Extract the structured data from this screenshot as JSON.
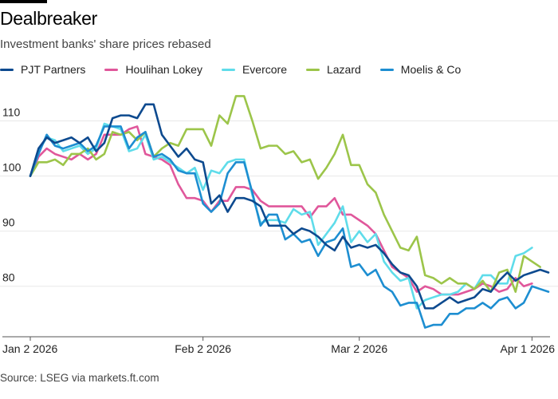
{
  "header": {
    "title": "Dealbreaker",
    "subtitle": "Investment banks' share prices rebased"
  },
  "footer": {
    "source": "Source: LSEG via markets.ft.com"
  },
  "colors": {
    "pjt": "#0d4a8f",
    "houlihan": "#e0579b",
    "evercore": "#5fdcea",
    "lazard": "#9cc54a",
    "moelis": "#1d8ed1",
    "axis": "#555555",
    "grid": "#e8e8e8",
    "text": "#222222"
  },
  "chart_data": {
    "type": "line",
    "title": "Dealbreaker",
    "subtitle": "Investment banks' share prices rebased",
    "xlabel": "",
    "ylabel": "",
    "ylim": [
      72,
      115
    ],
    "yticks": [
      80,
      90,
      100,
      110
    ],
    "grid": true,
    "legend_position": "top",
    "xtick_labels": [
      "Jan 2 2026",
      "Feb 2 2026",
      "Mar 2 2026",
      "Apr 1 2026"
    ],
    "xtick_index": [
      0,
      21,
      40,
      61
    ],
    "series": [
      {
        "name": "Houlihan Lokey",
        "color_key": "houlihan",
        "values": [
          100,
          103.5,
          105,
          104,
          103.5,
          103,
          104,
          103,
          104,
          107.5,
          107.5,
          107.5,
          108.5,
          109,
          104,
          103.5,
          103,
          102,
          98.5,
          96,
          96,
          95.5,
          93.5,
          95.5,
          95.5,
          98,
          98,
          97.5,
          95.5,
          94.5,
          94.5,
          94.5,
          94.5,
          94.5,
          92.5,
          94.5,
          94.5,
          96,
          93,
          93,
          92,
          91,
          89.5,
          86.5,
          83.5,
          82.5,
          81.5,
          79,
          80,
          79.5,
          78.5,
          78.5,
          78.5,
          79,
          79.5,
          80.5,
          80,
          79,
          79.5,
          81.5,
          80,
          80.5
        ]
      },
      {
        "name": "Evercore",
        "color_key": "evercore",
        "values": [
          100,
          104.5,
          107,
          106.5,
          104.5,
          105,
          105.5,
          104,
          105,
          109.5,
          109,
          108.5,
          104.5,
          105,
          107.5,
          103,
          103.5,
          102.5,
          101.5,
          100.5,
          101.5,
          97.5,
          101,
          100.5,
          102.5,
          103,
          103,
          96.5,
          91.5,
          92,
          92,
          91.5,
          94,
          93,
          93.5,
          87.5,
          89.5,
          91.5,
          94.5,
          88,
          90,
          88,
          89.5,
          84.5,
          82.5,
          81,
          81.5,
          76,
          77.5,
          78,
          78.5,
          78.5,
          79,
          80.5,
          79.5,
          82,
          82,
          80.5,
          80.5,
          85.5,
          86,
          87
        ]
      },
      {
        "name": "Lazard",
        "color_key": "lazard",
        "values": [
          100,
          102.5,
          102.5,
          103,
          102,
          104,
          104,
          105,
          103,
          104,
          108,
          107.5,
          108,
          106.5,
          108,
          103.5,
          105,
          106,
          105.5,
          108.5,
          108.5,
          108.5,
          105.5,
          111,
          109.5,
          114.5,
          114.5,
          110,
          105,
          105.5,
          105.5,
          104,
          104.5,
          102.5,
          103,
          99.5,
          101.5,
          104,
          107.5,
          102,
          102,
          98.5,
          97,
          93,
          90,
          87,
          86.5,
          89,
          82,
          81.5,
          80.5,
          81.5,
          80.5,
          80.5,
          79.5,
          81,
          79,
          82.5,
          83,
          79,
          85.5,
          84.5,
          83.5
        ]
      },
      {
        "name": "Moelis & Co",
        "color_key": "moelis",
        "values": [
          100,
          104,
          107.5,
          105.5,
          105,
          105.5,
          106,
          104.5,
          105.5,
          109,
          109,
          109,
          105,
          107,
          108,
          103.5,
          104,
          103,
          101,
          100.5,
          100.5,
          95,
          93.5,
          95,
          100.5,
          102.5,
          102.5,
          97,
          91,
          93,
          93,
          88.5,
          89.5,
          88,
          88.5,
          85.5,
          88,
          88.5,
          90.5,
          83.5,
          84,
          82,
          83,
          80,
          79,
          76.5,
          77,
          77,
          72.5,
          73,
          73,
          75,
          75,
          76,
          76,
          77,
          76,
          77.5,
          78,
          76,
          77,
          80,
          79.5,
          79
        ]
      },
      {
        "name": "PJT Partners",
        "color_key": "pjt",
        "values": [
          100,
          105,
          107,
          106,
          106.5,
          107,
          106,
          107,
          104.5,
          106,
          110.5,
          111,
          111,
          110.5,
          113,
          113,
          107.5,
          105.5,
          103.5,
          105,
          103,
          102.5,
          95,
          96.5,
          93.5,
          96,
          96,
          95.5,
          94.5,
          91,
          91,
          91,
          89.5,
          90.5,
          90,
          89,
          87.5,
          86.5,
          89,
          87,
          87.5,
          87,
          87.5,
          86,
          84,
          82.5,
          82,
          80,
          76,
          76,
          77,
          78,
          77,
          77.5,
          78,
          79.5,
          79,
          81,
          82.5,
          81,
          82,
          82.5,
          83,
          82.5
        ]
      }
    ]
  },
  "legend": {
    "items": [
      {
        "label": "PJT Partners",
        "color_key": "pjt"
      },
      {
        "label": "Houlihan Lokey",
        "color_key": "houlihan"
      },
      {
        "label": "Evercore",
        "color_key": "evercore"
      },
      {
        "label": "Lazard",
        "color_key": "lazard"
      },
      {
        "label": "Moelis & Co",
        "color_key": "moelis"
      }
    ]
  }
}
